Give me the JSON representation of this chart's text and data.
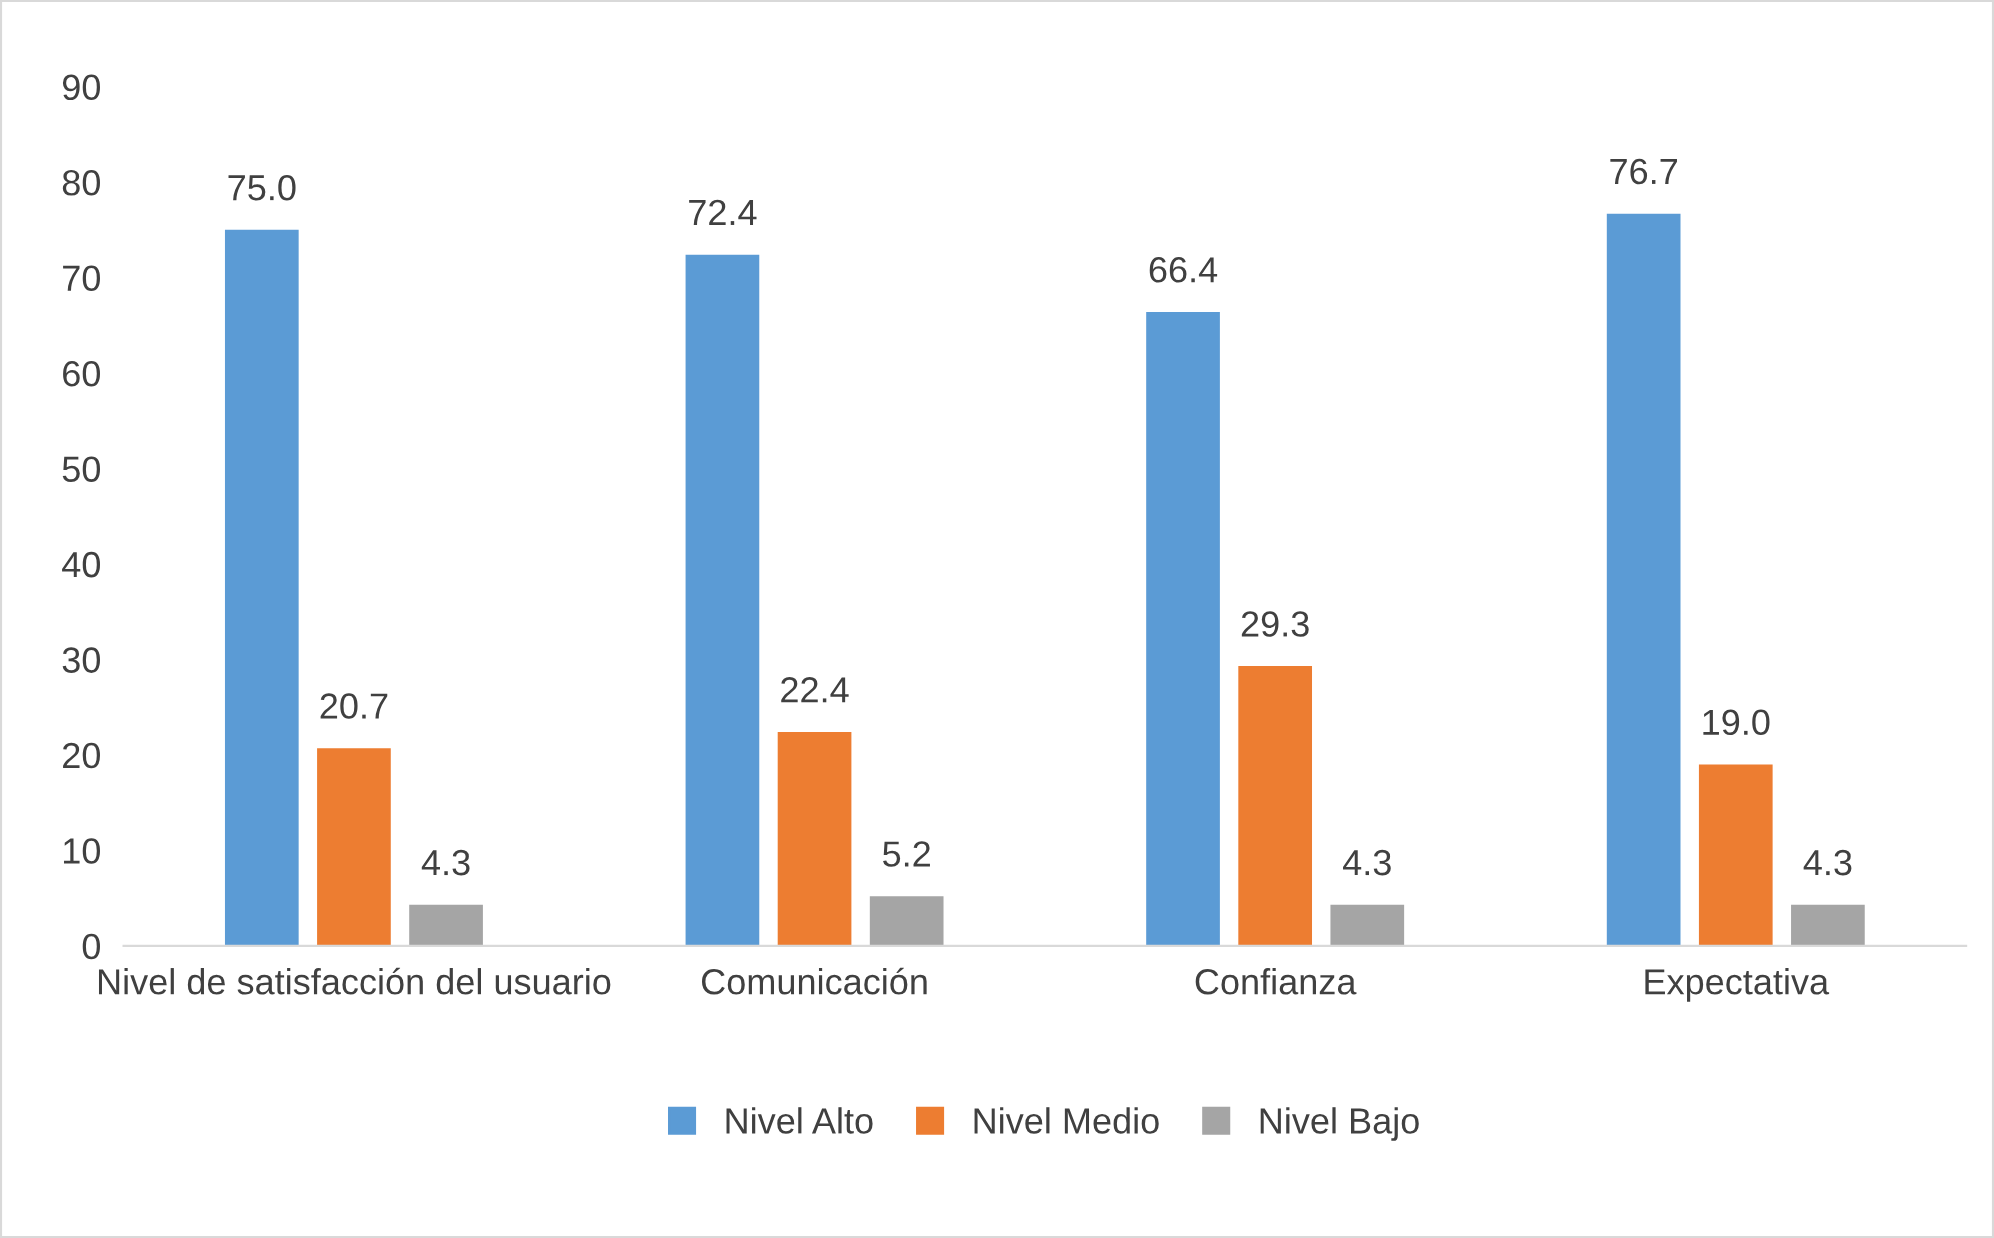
{
  "chart_data": {
    "type": "bar",
    "categories": [
      "Nivel de satisfacción del usuario",
      "Comunicación",
      "Confianza",
      "Expectativa"
    ],
    "series": [
      {
        "name": "Nivel Alto",
        "color": "#5b9bd5",
        "values": [
          75.0,
          72.4,
          66.4,
          76.7
        ],
        "value_labels": [
          "75.0",
          "72.4",
          "66.4",
          "76.7"
        ]
      },
      {
        "name": "Nivel Medio",
        "color": "#ed7d31",
        "values": [
          20.7,
          22.4,
          29.3,
          19.0
        ],
        "value_labels": [
          "20.7",
          "22.4",
          "29.3",
          "19.0"
        ]
      },
      {
        "name": "Nivel Bajo",
        "color": "#a5a5a5",
        "values": [
          4.3,
          5.2,
          4.3,
          4.3
        ],
        "value_labels": [
          "4.3",
          "5.2",
          "4.3",
          "4.3"
        ]
      }
    ],
    "ylim": [
      0,
      90
    ],
    "yticks": [
      0,
      10,
      20,
      30,
      40,
      50,
      60,
      70,
      80,
      90
    ],
    "grid": false,
    "legend": "bottom"
  }
}
